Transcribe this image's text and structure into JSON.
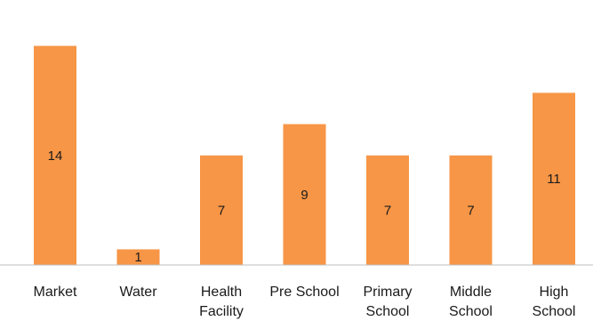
{
  "chart_data": {
    "type": "bar",
    "categories": [
      [
        "Market"
      ],
      [
        "Water"
      ],
      [
        "Health",
        "Facility"
      ],
      [
        "Pre School"
      ],
      [
        "Primary",
        "School"
      ],
      [
        "Middle",
        "School"
      ],
      [
        "High",
        "School"
      ]
    ],
    "values": [
      14,
      1,
      7,
      9,
      7,
      7,
      11
    ],
    "data_labels": [
      "14",
      "1",
      "7",
      "9",
      "7",
      "7",
      "11"
    ],
    "title": "",
    "xlabel": "",
    "ylabel": "",
    "grid": false,
    "legend": "none",
    "colors": {
      "bar": "#F79646",
      "axis": "#BFBFBF",
      "text": "#1a1a1a"
    }
  }
}
